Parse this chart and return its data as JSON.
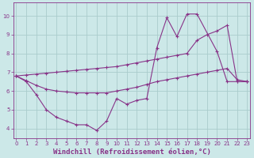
{
  "background_color": "#cce8e8",
  "grid_color": "#aacccc",
  "line_color": "#883388",
  "xlabel": "Windchill (Refroidissement éolien,°C)",
  "xlabel_fontsize": 6.5,
  "yticks": [
    4,
    5,
    6,
    7,
    8,
    9,
    10
  ],
  "xticks": [
    0,
    1,
    2,
    3,
    4,
    5,
    6,
    7,
    8,
    9,
    10,
    11,
    12,
    13,
    14,
    15,
    16,
    17,
    18,
    19,
    20,
    21,
    22,
    23
  ],
  "xlim": [
    -0.3,
    23.3
  ],
  "ylim": [
    3.5,
    10.7
  ],
  "line1_x": [
    0,
    1,
    2,
    3,
    4,
    5,
    6,
    7,
    8,
    9,
    10,
    11,
    12,
    13,
    14,
    15,
    16,
    17,
    18,
    20,
    21,
    22,
    23
  ],
  "line1_y": [
    6.8,
    6.5,
    5.8,
    5.0,
    4.6,
    4.4,
    4.2,
    4.2,
    3.9,
    4.4,
    5.6,
    5.3,
    5.5,
    5.6,
    8.3,
    9.9,
    8.9,
    10.1,
    10.1,
    8.1,
    6.5,
    6.5,
    6.5
  ],
  "line2_x": [
    0,
    1,
    2,
    3,
    4,
    5,
    6,
    7,
    8,
    9,
    10,
    11,
    12,
    13,
    14,
    15,
    16,
    17,
    18,
    19,
    20,
    21,
    22,
    23
  ],
  "line2_y": [
    6.8,
    6.55,
    6.3,
    6.1,
    6.0,
    5.95,
    5.9,
    5.9,
    5.9,
    5.9,
    6.0,
    6.1,
    6.2,
    6.35,
    6.5,
    6.6,
    6.7,
    6.8,
    6.9,
    7.0,
    7.1,
    7.2,
    6.6,
    6.5
  ],
  "line3_x": [
    0,
    1,
    2,
    3,
    4,
    5,
    6,
    7,
    8,
    9,
    10,
    11,
    12,
    13,
    14,
    15,
    16,
    17,
    18,
    19,
    20,
    21,
    22,
    23
  ],
  "line3_y": [
    6.8,
    6.85,
    6.9,
    6.95,
    7.0,
    7.05,
    7.1,
    7.15,
    7.2,
    7.25,
    7.3,
    7.4,
    7.5,
    7.6,
    7.7,
    7.8,
    7.9,
    8.0,
    8.7,
    9.0,
    9.2,
    9.5,
    6.5,
    6.5
  ]
}
